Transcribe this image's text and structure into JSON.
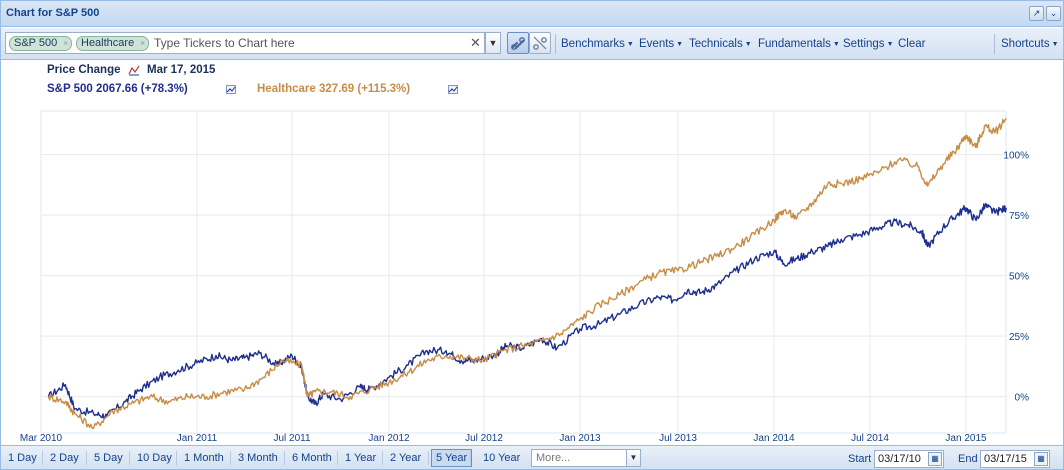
{
  "window": {
    "title": "Chart for S&P 500"
  },
  "toolbar": {
    "chips": [
      {
        "label": "S&P 500"
      },
      {
        "label": "Healthcare"
      }
    ],
    "chip_remove_glyph": "×",
    "ticker_placeholder": "Type Tickers to Chart here",
    "clear_glyph": "✕",
    "menus": {
      "benchmarks": "Benchmarks",
      "events": "Events",
      "technicals": "Technicals",
      "fundamentals": "Fundamentals",
      "settings": "Settings",
      "clear": "Clear",
      "shortcuts": "Shortcuts"
    }
  },
  "legend": {
    "mode": "Price Change",
    "date": "Mar 17, 2015",
    "series": [
      {
        "label": "S&P 500 2067.66 (+78.3%)",
        "color": "#1f2f8f"
      },
      {
        "label": "Healthcare 327.69 (+115.3%)",
        "color": "#c88c45"
      }
    ]
  },
  "chart_data": {
    "type": "line",
    "x_ticks": [
      "Mar 2010",
      "Jan 2011",
      "Jul 2011",
      "Jan 2012",
      "Jul 2012",
      "Jan 2013",
      "Jul 2013",
      "Jan 2014",
      "Jul 2014",
      "Jan 2015"
    ],
    "y_ticks": [
      "0%",
      "25%",
      "50%",
      "75%",
      "100%"
    ],
    "ylim": [
      -15,
      118
    ],
    "grid": true,
    "series": [
      {
        "name": "S&P 500",
        "color": "#1f2f8f",
        "x": [
          2010.21,
          2010.3,
          2010.35,
          2010.45,
          2010.52,
          2010.62,
          2010.7,
          2010.8,
          2010.9,
          2011.0,
          2011.1,
          2011.18,
          2011.25,
          2011.33,
          2011.42,
          2011.5,
          2011.55,
          2011.58,
          2011.62,
          2011.66,
          2011.75,
          2011.85,
          2011.9,
          2012.0,
          2012.1,
          2012.2,
          2012.3,
          2012.38,
          2012.45,
          2012.55,
          2012.62,
          2012.7,
          2012.8,
          2012.88,
          2013.0,
          2013.1,
          2013.2,
          2013.3,
          2013.4,
          2013.48,
          2013.55,
          2013.62,
          2013.7,
          2013.8,
          2013.9,
          2014.0,
          2014.05,
          2014.12,
          2014.2,
          2014.28,
          2014.35,
          2014.45,
          2014.55,
          2014.62,
          2014.7,
          2014.77,
          2014.8,
          2014.88,
          2014.95,
          2015.0,
          2015.05,
          2015.1,
          2015.15,
          2015.21
        ],
        "values": [
          0,
          5,
          -5,
          -7,
          -8,
          -2,
          3,
          8,
          11,
          14,
          17,
          15,
          16,
          18,
          13,
          17,
          12,
          0,
          -3,
          1,
          -1,
          4,
          3,
          8,
          13,
          19,
          19,
          15,
          15,
          17,
          21,
          20,
          24,
          20,
          28,
          30,
          34,
          38,
          41,
          40,
          44,
          43,
          46,
          52,
          57,
          60,
          55,
          57,
          60,
          62,
          65,
          67,
          70,
          72,
          71,
          68,
          62,
          70,
          75,
          78,
          73,
          79,
          76,
          78
        ]
      },
      {
        "name": "Healthcare",
        "color": "#c88c45",
        "x": [
          2010.21,
          2010.3,
          2010.35,
          2010.45,
          2010.55,
          2010.65,
          2010.75,
          2010.85,
          2010.95,
          2011.05,
          2011.15,
          2011.25,
          2011.35,
          2011.45,
          2011.55,
          2011.58,
          2011.62,
          2011.7,
          2011.8,
          2011.9,
          2012.0,
          2012.1,
          2012.2,
          2012.3,
          2012.4,
          2012.5,
          2012.6,
          2012.7,
          2012.8,
          2012.9,
          2013.0,
          2013.1,
          2013.2,
          2013.3,
          2013.4,
          2013.5,
          2013.6,
          2013.7,
          2013.8,
          2013.9,
          2014.0,
          2014.05,
          2014.12,
          2014.2,
          2014.28,
          2014.35,
          2014.45,
          2014.55,
          2014.65,
          2014.75,
          2014.8,
          2014.88,
          2014.95,
          2015.0,
          2015.05,
          2015.1,
          2015.15,
          2015.21
        ],
        "values": [
          0,
          -2,
          -7,
          -13,
          -6,
          -3,
          0,
          -2,
          0,
          0,
          2,
          3,
          8,
          15,
          13,
          0,
          2,
          2,
          0,
          3,
          6,
          10,
          15,
          17,
          16,
          15,
          19,
          21,
          23,
          26,
          32,
          38,
          42,
          47,
          51,
          52,
          55,
          58,
          62,
          67,
          73,
          77,
          74,
          80,
          88,
          88,
          90,
          93,
          98,
          95,
          87,
          96,
          102,
          108,
          103,
          112,
          109,
          115
        ]
      }
    ]
  },
  "ranges": {
    "buttons": [
      "1 Day",
      "2 Day",
      "5 Day",
      "10 Day",
      "1 Month",
      "3 Month",
      "6 Month",
      "1 Year",
      "2 Year",
      "5 Year",
      "10 Year"
    ],
    "active": "5 Year",
    "more_placeholder": "More...",
    "start_label": "Start",
    "start_value": "03/17/10",
    "end_label": "End",
    "end_value": "03/17/15"
  }
}
